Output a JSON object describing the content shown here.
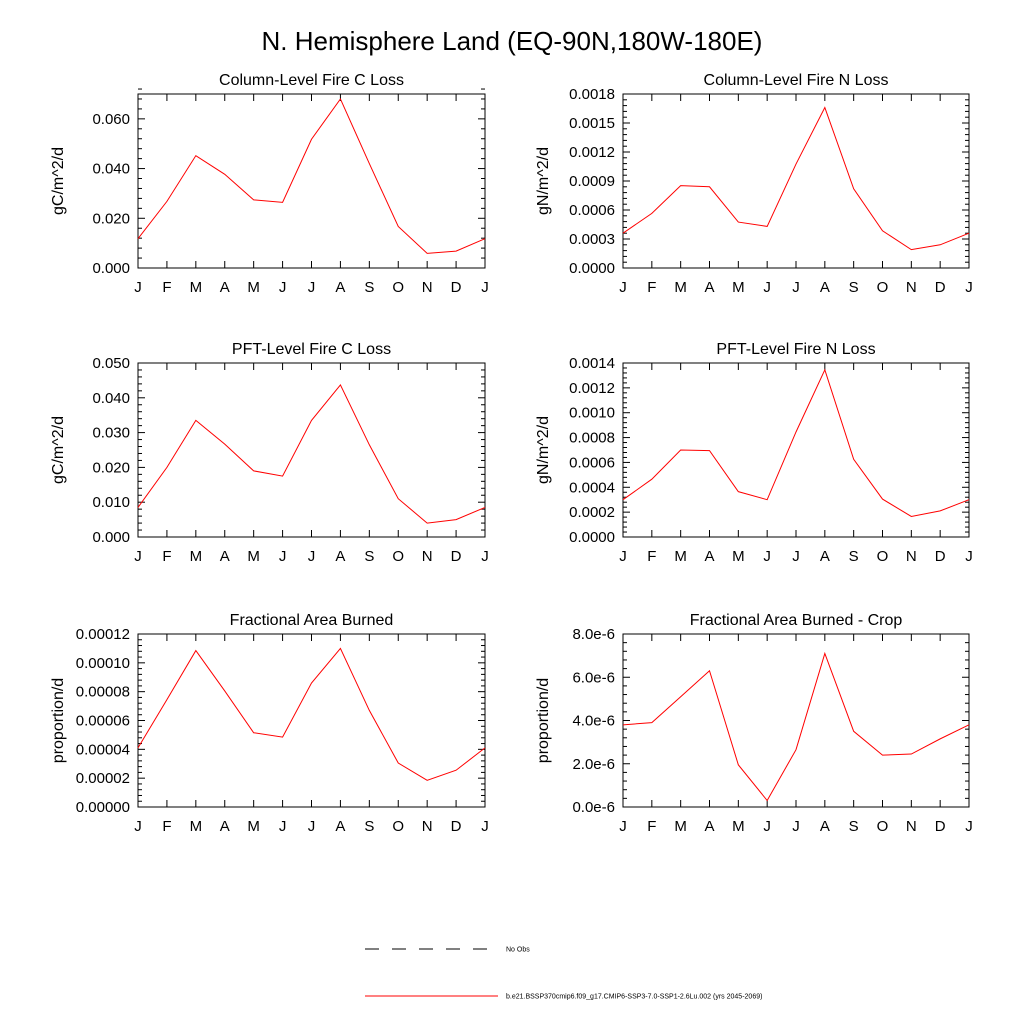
{
  "figure": {
    "title": "N. Hemisphere Land (EQ-90N,180W-180E)",
    "line_color": "#ff0000"
  },
  "legend": [
    {
      "label": "No Obs",
      "style": "dashed",
      "color": "#000000"
    },
    {
      "label": "b.e21.BSSP370cmip6.f09_g17.CMIP6-SSP3-7.0-SSP1-2.6Lu.002 (yrs 2045-2069)",
      "style": "solid",
      "color": "#ff0000"
    }
  ],
  "chart_data": [
    {
      "type": "line",
      "title": "Column-Level Fire C Loss",
      "ylabel": "gC/m^2/d",
      "categories": [
        "J",
        "F",
        "M",
        "A",
        "M",
        "J",
        "J",
        "A",
        "S",
        "O",
        "N",
        "D",
        "J"
      ],
      "ylim": [
        0,
        0.07
      ],
      "yticks": [
        0,
        0.02,
        0.04,
        0.06
      ],
      "ytick_labels": [
        "0.000",
        "0.020",
        "0.040",
        "0.060"
      ],
      "series": [
        {
          "values": [
            0.0118,
            0.0268,
            0.0452,
            0.0377,
            0.0274,
            0.0264,
            0.0518,
            0.068,
            0.042,
            0.0167,
            0.0059,
            0.0068,
            0.0118
          ]
        }
      ]
    },
    {
      "type": "line",
      "title": "Column-Level Fire N Loss",
      "ylabel": "gN/m^2/d",
      "categories": [
        "J",
        "F",
        "M",
        "A",
        "M",
        "J",
        "J",
        "A",
        "S",
        "O",
        "N",
        "D",
        "J"
      ],
      "ylim": [
        0,
        0.0018
      ],
      "yticks": [
        0,
        0.0003,
        0.0006,
        0.0009,
        0.0012,
        0.0015,
        0.0018
      ],
      "ytick_labels": [
        "0.0000",
        "0.0003",
        "0.0006",
        "0.0009",
        "0.0012",
        "0.0015",
        "0.0018"
      ],
      "series": [
        {
          "values": [
            0.00036,
            0.000565,
            0.000852,
            0.00084,
            0.000475,
            0.00043,
            0.001075,
            0.00166,
            0.00082,
            0.000385,
            0.00019,
            0.00024,
            0.00036
          ]
        }
      ]
    },
    {
      "type": "line",
      "title": "PFT-Level Fire C Loss",
      "ylabel": "gC/m^2/d",
      "categories": [
        "J",
        "F",
        "M",
        "A",
        "M",
        "J",
        "J",
        "A",
        "S",
        "O",
        "N",
        "D",
        "J"
      ],
      "ylim": [
        0,
        0.05
      ],
      "yticks": [
        0,
        0.01,
        0.02,
        0.03,
        0.04,
        0.05
      ],
      "ytick_labels": [
        "0.000",
        "0.010",
        "0.020",
        "0.030",
        "0.040",
        "0.050"
      ],
      "series": [
        {
          "values": [
            0.0085,
            0.02,
            0.0335,
            0.0267,
            0.019,
            0.0175,
            0.0335,
            0.0437,
            0.0265,
            0.011,
            0.004,
            0.005,
            0.0085
          ]
        }
      ]
    },
    {
      "type": "line",
      "title": "PFT-Level Fire N Loss",
      "ylabel": "gN/m^2/d",
      "categories": [
        "J",
        "F",
        "M",
        "A",
        "M",
        "J",
        "J",
        "A",
        "S",
        "O",
        "N",
        "D",
        "J"
      ],
      "ylim": [
        0,
        0.0014
      ],
      "yticks": [
        0,
        0.0002,
        0.0004,
        0.0006,
        0.0008,
        0.001,
        0.0012,
        0.0014
      ],
      "ytick_labels": [
        "0.0000",
        "0.0002",
        "0.0004",
        "0.0006",
        "0.0008",
        "0.0010",
        "0.0012",
        "0.0014"
      ],
      "series": [
        {
          "values": [
            0.0003,
            0.000465,
            0.0007,
            0.000695,
            0.000365,
            0.0003,
            0.000845,
            0.001345,
            0.000625,
            0.000305,
            0.000165,
            0.00021,
            0.0003
          ]
        }
      ]
    },
    {
      "type": "line",
      "title": "Fractional Area Burned",
      "ylabel": "proportion/d",
      "categories": [
        "J",
        "F",
        "M",
        "A",
        "M",
        "J",
        "J",
        "A",
        "S",
        "O",
        "N",
        "D",
        "J"
      ],
      "ylim": [
        0,
        0.00012
      ],
      "yticks": [
        0,
        2e-05,
        4e-05,
        6e-05,
        8e-05,
        0.0001,
        0.00012
      ],
      "ytick_labels": [
        "0.00000",
        "0.00002",
        "0.00004",
        "0.00006",
        "0.00008",
        "0.00010",
        "0.00012"
      ],
      "series": [
        {
          "values": [
            4.1e-05,
            7.45e-05,
            0.0001085,
            8.05e-05,
            5.15e-05,
            4.85e-05,
            8.6e-05,
            0.00011,
            6.7e-05,
            3.05e-05,
            1.85e-05,
            2.55e-05,
            4.1e-05
          ]
        }
      ]
    },
    {
      "type": "line",
      "title": "Fractional Area Burned - Crop",
      "ylabel": "proportion/d",
      "categories": [
        "J",
        "F",
        "M",
        "A",
        "M",
        "J",
        "J",
        "A",
        "S",
        "O",
        "N",
        "D",
        "J"
      ],
      "ylim": [
        0,
        8e-06
      ],
      "yticks": [
        0,
        2e-06,
        4e-06,
        6e-06,
        8e-06
      ],
      "ytick_labels": [
        "0.0e-6",
        "2.0e-6",
        "4.0e-6",
        "6.0e-6",
        "8.0e-6"
      ],
      "series": [
        {
          "values": [
            3.8e-06,
            3.9e-06,
            5.1e-06,
            6.3e-06,
            1.95e-06,
            3e-07,
            2.65e-06,
            7.1e-06,
            3.5e-06,
            2.4e-06,
            2.45e-06,
            3.15e-06,
            3.8e-06
          ]
        }
      ]
    }
  ]
}
